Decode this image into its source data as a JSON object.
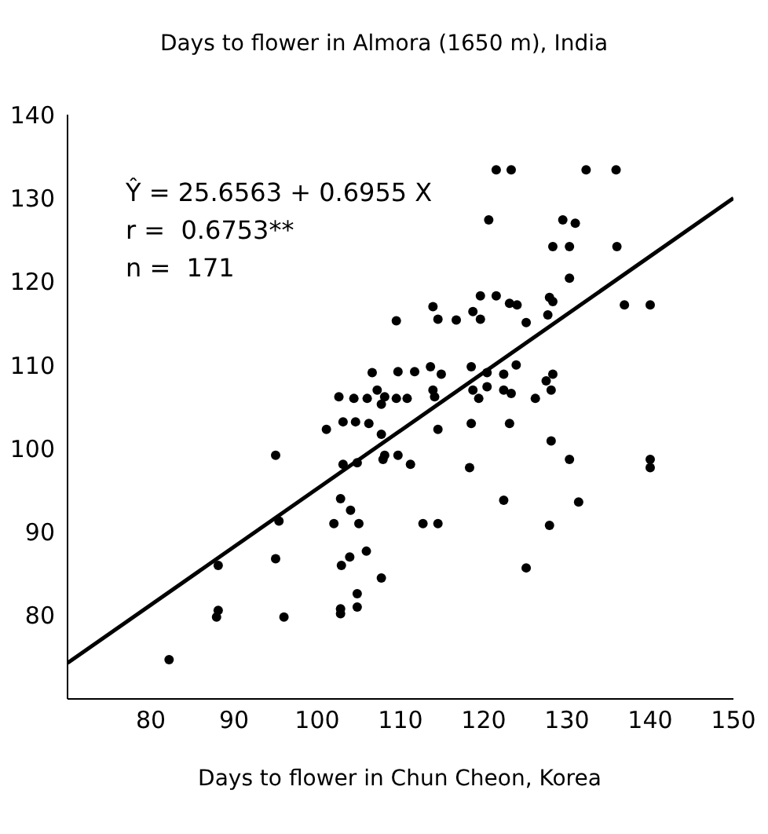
{
  "chart_data": {
    "type": "scatter",
    "title": "Days to flower in Almora (1650 m), India",
    "xlabel": "Days to flower in Chun Cheon, Korea",
    "annotations": [
      "Ŷ = 25.6563 + 0.6955 X",
      "r =  0.6753**",
      "n =  171"
    ],
    "xlim": [
      70,
      150
    ],
    "ylim": [
      70,
      140
    ],
    "xticks": [
      80,
      90,
      100,
      110,
      120,
      130,
      140,
      150
    ],
    "yticks": [
      80,
      90,
      100,
      110,
      120,
      130,
      140
    ],
    "series": [
      {
        "marker": "circle",
        "color": "#000000",
        "x": [
          121.5,
          123.3,
          132.3,
          135.9,
          120.6,
          129.5,
          131,
          128.3,
          130.3,
          136,
          130.3,
          119.6,
          121.5,
          127.9,
          136.9,
          140,
          109.5,
          113.9,
          114.5,
          116.7,
          118.7,
          119.6,
          123.1,
          124,
          125.1,
          127.7,
          128.3,
          106.6,
          109.7,
          111.7,
          113.6,
          114.9,
          118.5,
          120.4,
          122.4,
          123.9,
          102.6,
          104.4,
          106,
          107.2,
          108.1,
          109.5,
          110.8,
          113.9,
          114.1,
          107.7,
          118.7,
          119.4,
          120.4,
          122.4,
          123.3,
          126.2,
          127.5,
          128.3,
          128.1,
          101.1,
          103.1,
          104.6,
          106.2,
          107.7,
          114.5,
          118.5,
          123.1,
          95,
          103.1,
          104.8,
          107.9,
          108.1,
          109.7,
          111.2,
          128.1,
          130.3,
          140,
          140,
          118.3,
          102.8,
          104,
          102,
          105,
          112.7,
          114.5,
          95.4,
          122.4,
          131.4,
          127.9,
          125.1,
          95,
          102.9,
          103.9,
          105.9,
          107.7,
          88.1,
          88.1,
          87.9,
          96,
          102.8,
          102.8,
          104.8,
          104.8,
          82.2
        ],
        "values": [
          133.4,
          133.4,
          133.4,
          133.4,
          127.4,
          127.4,
          127,
          124.2,
          124.2,
          124.2,
          120.4,
          118.3,
          118.3,
          118.1,
          117.2,
          117.2,
          115.3,
          117,
          115.5,
          115.4,
          116.4,
          115.5,
          117.4,
          117.2,
          115.1,
          116,
          117.6,
          109.1,
          109.2,
          109.2,
          109.8,
          108.9,
          109.8,
          109.1,
          108.9,
          110,
          106.2,
          106,
          106,
          107,
          106.2,
          106,
          106,
          107,
          106.2,
          105.3,
          107,
          106,
          107.4,
          107,
          106.6,
          106,
          108.1,
          108.9,
          107,
          102.3,
          103.2,
          103.2,
          103,
          101.7,
          102.3,
          103,
          103,
          99.2,
          98.1,
          98.3,
          98.7,
          99.2,
          99.2,
          98.1,
          100.9,
          98.7,
          98.7,
          97.7,
          97.7,
          94,
          92.6,
          91,
          91,
          91,
          91,
          91.3,
          93.8,
          93.6,
          90.8,
          85.7,
          86.8,
          86,
          87,
          87.7,
          84.5,
          86,
          80.6,
          79.8,
          79.8,
          80.8,
          80.2,
          82.6,
          81,
          74.7
        ]
      },
      {
        "type": "line",
        "color": "#000000",
        "x": [
          70,
          150
        ],
        "values": [
          74.3,
          130
        ]
      }
    ]
  }
}
